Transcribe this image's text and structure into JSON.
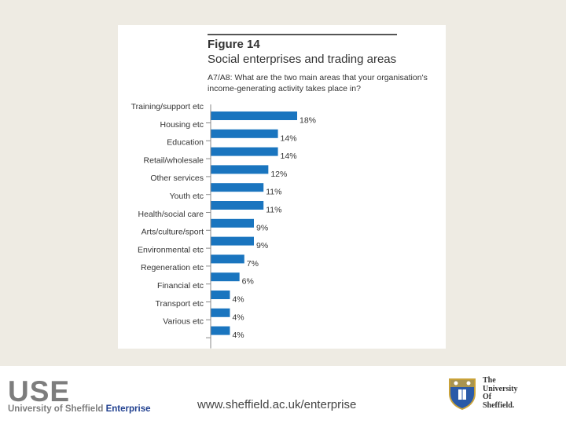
{
  "figure": {
    "label": "Figure 14",
    "title": "Social enterprises and trading areas",
    "question_line1": "A7/A8: What are the two main areas that your organisation's",
    "question_line2": "income-generating activity takes place in?"
  },
  "chart_data": {
    "type": "bar",
    "orientation": "horizontal",
    "title": "Social enterprises and trading areas",
    "categories": [
      "Training/support etc",
      "Housing etc",
      "Education",
      "Retail/wholesale",
      "Other services",
      "Youth etc",
      "Health/social care",
      "Arts/culture/sport",
      "Environmental etc",
      "Regeneration etc",
      "Financial etc",
      "Transport etc",
      "Various etc"
    ],
    "values": [
      18,
      14,
      14,
      12,
      11,
      11,
      9,
      9,
      7,
      6,
      4,
      4,
      4
    ],
    "value_labels": [
      "18%",
      "14%",
      "14%",
      "12%",
      "11%",
      "11%",
      "9%",
      "9%",
      "7%",
      "6%",
      "4%",
      "4%",
      "4%"
    ],
    "unit": "%",
    "xlim": [
      0,
      18
    ],
    "bar_color": "#1a75bf"
  },
  "footer": {
    "logo_text": "USE",
    "logo_sub_prefix": "University of Sheffield ",
    "logo_sub_accent": "Enterprise",
    "website": "www.sheffield.ac.uk/enterprise",
    "university_line1": "The",
    "university_line2": "University",
    "university_line3": "Of",
    "university_line4": "Sheffield."
  }
}
